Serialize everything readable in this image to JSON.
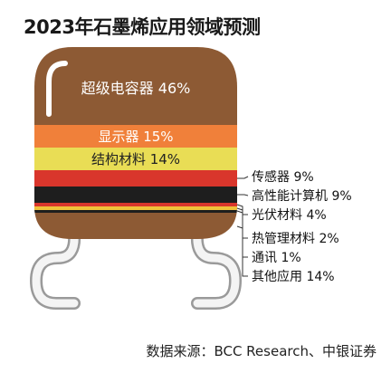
{
  "title": "2023年石墨烯应用领域预测",
  "source": "数据来源：BCC Research、中银证券",
  "chart_data": {
    "type": "bar",
    "orientation": "stacked-100",
    "title": "2023年石墨烯应用领域预测",
    "unit": "%",
    "series": [
      {
        "name": "超级电容器",
        "value": 46,
        "label": "超级电容器 46%",
        "color": "#8d5a34"
      },
      {
        "name": "显示器",
        "value": 15,
        "label": "显示器 15%",
        "color": "#f0803a"
      },
      {
        "name": "结构材料",
        "value": 14,
        "label": "结构材料 14%",
        "color": "#e9dd55"
      },
      {
        "name": "传感器",
        "value": 9,
        "label": "传感器 9%",
        "color": "#d9362c"
      },
      {
        "name": "高性能计算机",
        "value": 9,
        "label": "高性能计算机 9%",
        "color": "#1e1e1e"
      },
      {
        "name": "光伏材料",
        "value": 4,
        "label": "光伏材料 4%",
        "color": "#d9362c"
      },
      {
        "name": "热管理材料",
        "value": 2,
        "label": "热管理材料 2%",
        "color": "#f0c23a"
      },
      {
        "name": "通讯",
        "value": 1,
        "label": "通讯 1%",
        "color": "#1e1e1e"
      },
      {
        "name": "其他应用",
        "value": 14,
        "label": "其他应用 14%",
        "color": "#8d5a34"
      }
    ]
  }
}
